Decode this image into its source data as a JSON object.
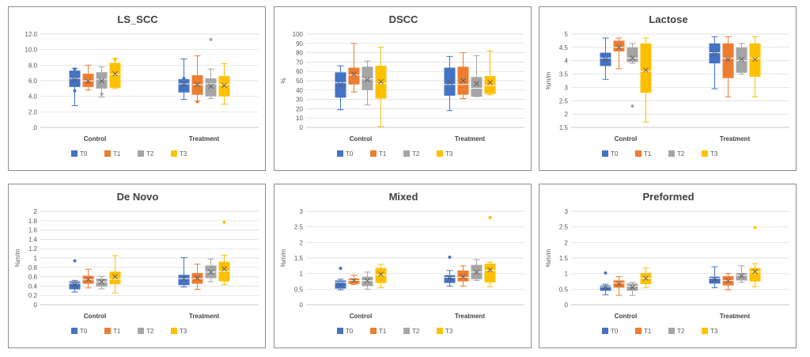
{
  "colors": {
    "T0": "#4472C4",
    "T1": "#ED7D31",
    "T2": "#A5A5A5",
    "T3": "#FFC000"
  },
  "chart_data": [
    {
      "type": "box",
      "title": "LS_SCC",
      "ylabel": "",
      "ylim": [
        0,
        12
      ],
      "yticks": [
        0,
        2,
        4,
        6,
        8,
        10,
        12
      ],
      "ytick_labels": [
        ".0",
        "2.0",
        "4.0",
        "6.0",
        "8.0",
        "10.0",
        "12.0"
      ],
      "categories": [
        "Control",
        "Treatment"
      ],
      "legend": [
        "T0",
        "T1",
        "T2",
        "T3"
      ],
      "legend_position": "bottom",
      "grid": true,
      "series": [
        {
          "name": "T0",
          "data": [
            {
              "min": 2.8,
              "q1": 5.2,
              "median": 6.3,
              "q3": 7.3,
              "max": 7.6,
              "mean": 6.1,
              "outliers": [
                4.7,
                7.5
              ]
            },
            {
              "min": 3.6,
              "q1": 4.5,
              "median": 5.6,
              "q3": 6.2,
              "max": 8.8,
              "mean": 5.5,
              "outliers": [
                6.3
              ]
            }
          ]
        },
        {
          "name": "T1",
          "data": [
            {
              "min": 4.8,
              "q1": 5.2,
              "median": 6.0,
              "q3": 6.9,
              "max": 8.0,
              "mean": 5.9,
              "outliers": []
            },
            {
              "min": 3.4,
              "q1": 4.2,
              "median": 5.5,
              "q3": 6.7,
              "max": 9.2,
              "mean": 5.5,
              "outliers": [
                3.3
              ]
            }
          ]
        },
        {
          "name": "T2",
          "data": [
            {
              "min": 3.9,
              "q1": 5.0,
              "median": 6.2,
              "q3": 7.1,
              "max": 7.8,
              "mean": 6.0,
              "outliers": [
                4.3
              ]
            },
            {
              "min": 3.7,
              "q1": 4.0,
              "median": 5.6,
              "q3": 6.3,
              "max": 7.5,
              "mean": 5.3,
              "outliers": [
                11.3
              ]
            }
          ]
        },
        {
          "name": "T3",
          "data": [
            {
              "min": 5.0,
              "q1": 5.1,
              "median": 6.8,
              "q3": 8.3,
              "max": 8.9,
              "mean": 6.9,
              "outliers": [
                8.7
              ]
            },
            {
              "min": 3.0,
              "q1": 4.0,
              "median": 5.5,
              "q3": 6.6,
              "max": 8.2,
              "mean": 5.4,
              "outliers": []
            }
          ]
        }
      ]
    },
    {
      "type": "box",
      "title": "DSCC",
      "ylabel": "%",
      "ylim": [
        0,
        100
      ],
      "yticks": [
        0,
        10,
        20,
        30,
        40,
        50,
        60,
        70,
        80,
        90,
        100
      ],
      "ytick_labels": [
        "0",
        "10",
        "20",
        "30",
        "40",
        "50",
        "60",
        "70",
        "80",
        "90",
        "100"
      ],
      "categories": [
        "Control",
        "Treatment"
      ],
      "legend": [
        "T0",
        "T1",
        "T2",
        "T3"
      ],
      "legend_position": "bottom",
      "grid": true,
      "series": [
        {
          "name": "T0",
          "data": [
            {
              "min": 19,
              "q1": 32,
              "median": 48,
              "q3": 59,
              "max": 66,
              "mean": 46,
              "outliers": []
            },
            {
              "min": 18,
              "q1": 34,
              "median": 46,
              "q3": 64,
              "max": 76,
              "mean": 48,
              "outliers": []
            }
          ]
        },
        {
          "name": "T1",
          "data": [
            {
              "min": 38,
              "q1": 46,
              "median": 56,
              "q3": 64,
              "max": 90,
              "mean": 57,
              "outliers": []
            },
            {
              "min": 31,
              "q1": 35,
              "median": 46,
              "q3": 65,
              "max": 80,
              "mean": 50,
              "outliers": []
            }
          ]
        },
        {
          "name": "T2",
          "data": [
            {
              "min": 24,
              "q1": 40,
              "median": 52,
              "q3": 65,
              "max": 71,
              "mean": 51,
              "outliers": []
            },
            {
              "min": 33,
              "q1": 33,
              "median": 42,
              "q3": 54,
              "max": 77,
              "mean": 47,
              "outliers": []
            }
          ]
        },
        {
          "name": "T3",
          "data": [
            {
              "min": 1,
              "q1": 31,
              "median": 47,
              "q3": 66,
              "max": 86,
              "mean": 49,
              "outliers": []
            },
            {
              "min": 35,
              "q1": 36,
              "median": 45,
              "q3": 55,
              "max": 82,
              "mean": 48,
              "outliers": []
            }
          ]
        }
      ]
    },
    {
      "type": "box",
      "title": "Lactose",
      "ylabel": "%m/m",
      "ylim": [
        1.5,
        5
      ],
      "yticks": [
        1.5,
        2,
        2.5,
        3,
        3.5,
        4,
        4.5,
        5
      ],
      "ytick_labels": [
        "1.5",
        "2",
        "2.5",
        "3",
        "3.5",
        "4",
        "4.5",
        "5"
      ],
      "categories": [
        "Control",
        "Treatment"
      ],
      "legend": [
        "T0",
        "T1",
        "T2",
        "T3"
      ],
      "legend_position": "bottom",
      "grid": true,
      "series": [
        {
          "name": "T0",
          "data": [
            {
              "min": 3.3,
              "q1": 3.8,
              "median": 4.1,
              "q3": 4.3,
              "max": 4.85,
              "mean": 4.05,
              "outliers": []
            },
            {
              "min": 2.95,
              "q1": 3.9,
              "median": 4.3,
              "q3": 4.65,
              "max": 4.9,
              "mean": 4.25,
              "outliers": []
            }
          ]
        },
        {
          "name": "T1",
          "data": [
            {
              "min": 3.7,
              "q1": 4.35,
              "median": 4.5,
              "q3": 4.75,
              "max": 4.85,
              "mean": 4.5,
              "outliers": []
            },
            {
              "min": 2.65,
              "q1": 3.35,
              "median": 4.1,
              "q3": 4.65,
              "max": 4.9,
              "mean": 4.05,
              "outliers": []
            }
          ]
        },
        {
          "name": "T2",
          "data": [
            {
              "min": 3.9,
              "q1": 3.95,
              "median": 4.1,
              "q3": 4.5,
              "max": 4.65,
              "mean": 4.1,
              "outliers": [
                2.3
              ]
            },
            {
              "min": 3.5,
              "q1": 3.55,
              "median": 4.0,
              "q3": 4.5,
              "max": 4.65,
              "mean": 4.05,
              "outliers": []
            }
          ]
        },
        {
          "name": "T3",
          "data": [
            {
              "min": 1.7,
              "q1": 2.8,
              "median": 3.6,
              "q3": 4.65,
              "max": 4.85,
              "mean": 3.65,
              "outliers": []
            },
            {
              "min": 2.65,
              "q1": 3.4,
              "median": 4.1,
              "q3": 4.65,
              "max": 4.9,
              "mean": 4.05,
              "outliers": []
            }
          ]
        }
      ]
    },
    {
      "type": "box",
      "title": "De Novo",
      "ylabel": "%m/m",
      "ylim": [
        0,
        2
      ],
      "yticks": [
        0,
        0.2,
        0.4,
        0.6,
        0.8,
        1,
        1.2,
        1.4,
        1.6,
        1.8,
        2
      ],
      "ytick_labels": [
        "0",
        "0.2",
        "0.4",
        "0.6",
        "0.8",
        "1",
        "1.2",
        "1.4",
        "1.6",
        "1.8",
        "2"
      ],
      "categories": [
        "Control",
        "Treatment"
      ],
      "legend": [
        "T0",
        "T1",
        "T2",
        "T3"
      ],
      "legend_position": "bottom",
      "grid": true,
      "series": [
        {
          "name": "T0",
          "data": [
            {
              "min": 0.27,
              "q1": 0.33,
              "median": 0.46,
              "q3": 0.5,
              "max": 0.52,
              "mean": 0.43,
              "outliers": [
                0.94
              ]
            },
            {
              "min": 0.38,
              "q1": 0.42,
              "median": 0.56,
              "q3": 0.64,
              "max": 1.01,
              "mean": 0.56,
              "outliers": []
            }
          ]
        },
        {
          "name": "T1",
          "data": [
            {
              "min": 0.36,
              "q1": 0.45,
              "median": 0.54,
              "q3": 0.62,
              "max": 0.76,
              "mean": 0.54,
              "outliers": []
            },
            {
              "min": 0.33,
              "q1": 0.45,
              "median": 0.56,
              "q3": 0.68,
              "max": 0.87,
              "mean": 0.57,
              "outliers": []
            }
          ]
        },
        {
          "name": "T2",
          "data": [
            {
              "min": 0.34,
              "q1": 0.39,
              "median": 0.49,
              "q3": 0.56,
              "max": 0.61,
              "mean": 0.49,
              "outliers": []
            },
            {
              "min": 0.49,
              "q1": 0.57,
              "median": 0.7,
              "q3": 0.84,
              "max": 0.98,
              "mean": 0.7,
              "outliers": []
            }
          ]
        },
        {
          "name": "T3",
          "data": [
            {
              "min": 0.25,
              "q1": 0.44,
              "median": 0.55,
              "q3": 0.71,
              "max": 1.05,
              "mean": 0.6,
              "outliers": []
            },
            {
              "min": 0.43,
              "q1": 0.5,
              "median": 0.72,
              "q3": 0.92,
              "max": 1.06,
              "mean": 0.77,
              "outliers": [
                1.77
              ]
            }
          ]
        }
      ]
    },
    {
      "type": "box",
      "title": "Mixed",
      "ylabel": "%m/m",
      "ylim": [
        0,
        3
      ],
      "yticks": [
        0,
        0.5,
        1,
        1.5,
        2,
        2.5,
        3
      ],
      "ytick_labels": [
        "0",
        "0.5",
        "1",
        "1.5",
        "2",
        "2.5",
        "3"
      ],
      "categories": [
        "Control",
        "Treatment"
      ],
      "legend": [
        "T0",
        "T1",
        "T2",
        "T3"
      ],
      "legend_position": "bottom",
      "grid": true,
      "series": [
        {
          "name": "T0",
          "data": [
            {
              "min": 0.48,
              "q1": 0.52,
              "median": 0.72,
              "q3": 0.78,
              "max": 0.82,
              "mean": 0.65,
              "outliers": [
                1.17
              ]
            },
            {
              "min": 0.6,
              "q1": 0.7,
              "median": 0.88,
              "q3": 0.95,
              "max": 1.1,
              "mean": 0.85,
              "outliers": [
                1.53
              ]
            }
          ]
        },
        {
          "name": "T1",
          "data": [
            {
              "min": 0.65,
              "q1": 0.67,
              "median": 0.78,
              "q3": 0.84,
              "max": 0.95,
              "mean": 0.78,
              "outliers": []
            },
            {
              "min": 0.6,
              "q1": 0.75,
              "median": 0.88,
              "q3": 1.1,
              "max": 1.25,
              "mean": 0.9,
              "outliers": []
            }
          ]
        },
        {
          "name": "T2",
          "data": [
            {
              "min": 0.5,
              "q1": 0.6,
              "median": 0.77,
              "q3": 0.9,
              "max": 1.05,
              "mean": 0.77,
              "outliers": []
            },
            {
              "min": 0.78,
              "q1": 0.82,
              "median": 1.05,
              "q3": 1.28,
              "max": 1.45,
              "mean": 1.05,
              "outliers": []
            }
          ]
        },
        {
          "name": "T3",
          "data": [
            {
              "min": 0.55,
              "q1": 0.7,
              "median": 0.95,
              "q3": 1.18,
              "max": 1.3,
              "mean": 0.98,
              "outliers": []
            },
            {
              "min": 0.58,
              "q1": 0.72,
              "median": 1.1,
              "q3": 1.32,
              "max": 1.37,
              "mean": 1.12,
              "outliers": [
                2.8
              ]
            }
          ]
        }
      ]
    },
    {
      "type": "box",
      "title": "Preformed",
      "ylabel": "%m/m",
      "ylim": [
        0,
        3
      ],
      "yticks": [
        0,
        0.5,
        1,
        1.5,
        2,
        2.5,
        3
      ],
      "ytick_labels": [
        "0",
        "0.5",
        "1",
        "1.5",
        "2",
        "2.5",
        "3"
      ],
      "categories": [
        "Control",
        "Treatment"
      ],
      "legend": [
        "T0",
        "T1",
        "T2",
        "T3"
      ],
      "legend_position": "bottom",
      "grid": true,
      "series": [
        {
          "name": "T0",
          "data": [
            {
              "min": 0.32,
              "q1": 0.45,
              "median": 0.58,
              "q3": 0.62,
              "max": 0.66,
              "mean": 0.55,
              "outliers": [
                1.02
              ]
            },
            {
              "min": 0.55,
              "q1": 0.68,
              "median": 0.85,
              "q3": 0.9,
              "max": 1.22,
              "mean": 0.82,
              "outliers": []
            }
          ]
        },
        {
          "name": "T1",
          "data": [
            {
              "min": 0.3,
              "q1": 0.55,
              "median": 0.7,
              "q3": 0.78,
              "max": 0.9,
              "mean": 0.67,
              "outliers": []
            },
            {
              "min": 0.48,
              "q1": 0.62,
              "median": 0.78,
              "q3": 0.92,
              "max": 1.0,
              "mean": 0.77,
              "outliers": []
            }
          ]
        },
        {
          "name": "T2",
          "data": [
            {
              "min": 0.3,
              "q1": 0.45,
              "median": 0.6,
              "q3": 0.68,
              "max": 0.72,
              "mean": 0.56,
              "outliers": []
            },
            {
              "min": 0.72,
              "q1": 0.78,
              "median": 0.95,
              "q3": 1.02,
              "max": 1.25,
              "mean": 0.93,
              "outliers": []
            }
          ]
        },
        {
          "name": "T3",
          "data": [
            {
              "min": 0.55,
              "q1": 0.66,
              "median": 0.85,
              "q3": 1.02,
              "max": 1.18,
              "mean": 0.85,
              "outliers": []
            },
            {
              "min": 0.58,
              "q1": 0.75,
              "median": 1.05,
              "q3": 1.18,
              "max": 1.32,
              "mean": 1.07,
              "outliers": [
                2.48
              ]
            }
          ]
        }
      ]
    }
  ]
}
